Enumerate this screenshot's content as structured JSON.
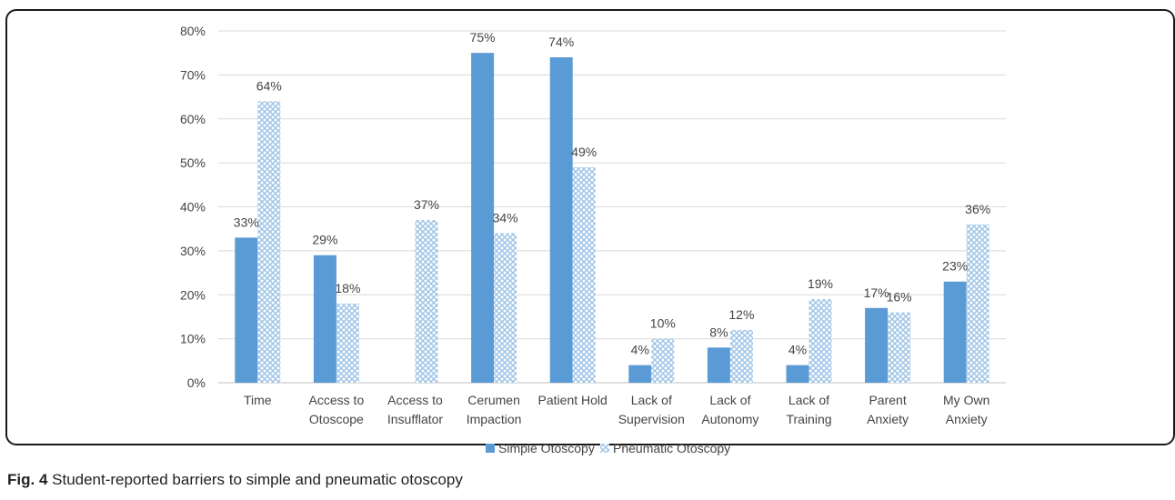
{
  "chart_data": {
    "type": "bar",
    "categories": [
      [
        "Time"
      ],
      [
        "Access to",
        "Otoscope"
      ],
      [
        "Access to",
        "Insufflator"
      ],
      [
        "Cerumen",
        "Impaction"
      ],
      [
        "Patient Hold"
      ],
      [
        "Lack of",
        "Supervision"
      ],
      [
        "Lack of",
        "Autonomy"
      ],
      [
        "Lack of",
        "Training"
      ],
      [
        "Parent",
        "Anxiety"
      ],
      [
        "My Own",
        "Anxiety"
      ]
    ],
    "series": [
      {
        "name": "Simple Otoscopy",
        "values": [
          33,
          29,
          null,
          75,
          74,
          4,
          8,
          4,
          17,
          23
        ],
        "labels": [
          "33%",
          "29%",
          "",
          "75%",
          "74%",
          "4%",
          "8%",
          "4%",
          "17%",
          "23%"
        ],
        "color": "#5b9bd5",
        "pattern": "solid"
      },
      {
        "name": "Pneumatic Otoscopy",
        "values": [
          64,
          18,
          37,
          34,
          49,
          10,
          12,
          19,
          16,
          36
        ],
        "labels": [
          "64%",
          "18%",
          "37%",
          "34%",
          "49%",
          "10%",
          "12%",
          "19%",
          "16%",
          "36%"
        ],
        "color": "#9dc3e6",
        "pattern": "crosshatch"
      }
    ],
    "y_ticks": [
      "0%",
      "10%",
      "20%",
      "30%",
      "40%",
      "50%",
      "60%",
      "70%",
      "80%"
    ],
    "ylim": [
      0,
      80
    ],
    "grid": true,
    "legend_position": "bottom-center"
  },
  "caption": {
    "label": "Fig. 4",
    "text": " Student-reported barriers to simple and pneumatic otoscopy"
  }
}
